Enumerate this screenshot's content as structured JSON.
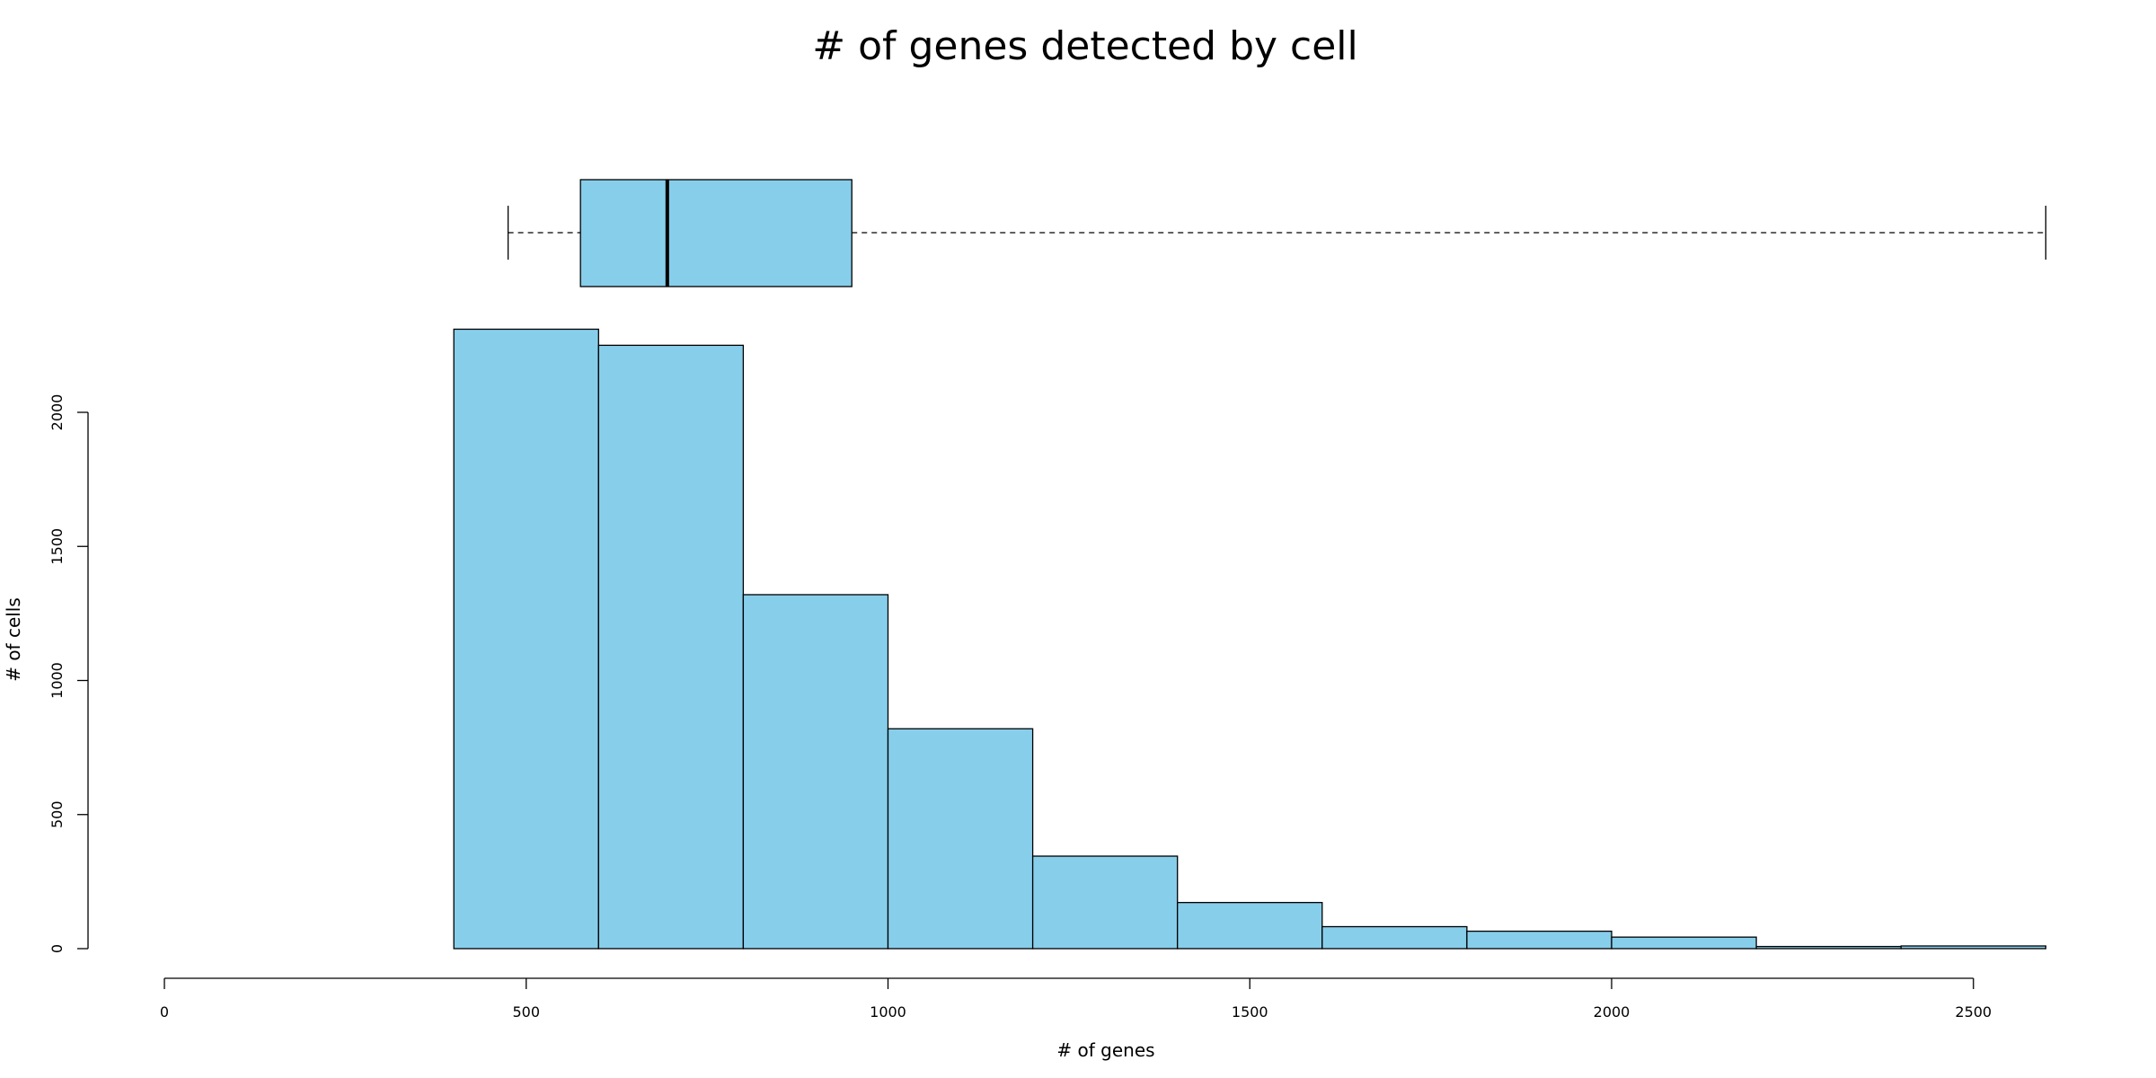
{
  "chart_data": {
    "type": "bar",
    "title": "# of genes detected by cell",
    "xlabel": "# of genes",
    "ylabel": "# of cells",
    "bins": [
      {
        "x0": 400,
        "x1": 600,
        "count": 2310
      },
      {
        "x0": 600,
        "x1": 800,
        "count": 2250
      },
      {
        "x0": 800,
        "x1": 1000,
        "count": 1320
      },
      {
        "x0": 1000,
        "x1": 1200,
        "count": 820
      },
      {
        "x0": 1200,
        "x1": 1400,
        "count": 345
      },
      {
        "x0": 1400,
        "x1": 1600,
        "count": 172
      },
      {
        "x0": 1600,
        "x1": 1800,
        "count": 82
      },
      {
        "x0": 1800,
        "x1": 2000,
        "count": 65
      },
      {
        "x0": 2000,
        "x1": 2200,
        "count": 43
      },
      {
        "x0": 2200,
        "x1": 2400,
        "count": 8
      },
      {
        "x0": 2400,
        "x1": 2600,
        "count": 10
      }
    ],
    "xlim": [
      0,
      2600
    ],
    "ylim": [
      0,
      2310
    ],
    "x_ticks": [
      0,
      500,
      1000,
      1500,
      2000,
      2500
    ],
    "x_tick_labels": [
      "0",
      "500",
      "1000",
      "1500",
      "2000",
      "2500"
    ],
    "y_ticks": [
      0,
      500,
      1000,
      1500,
      2000
    ],
    "y_tick_labels": [
      "0",
      "500",
      "1000",
      "1500",
      "2000"
    ],
    "boxplot": {
      "whisker_low": 475,
      "q1": 575,
      "median": 695,
      "q3": 950,
      "whisker_high": 2600
    },
    "fill_color": "#87CEEB",
    "grid": false,
    "legend": "none"
  }
}
